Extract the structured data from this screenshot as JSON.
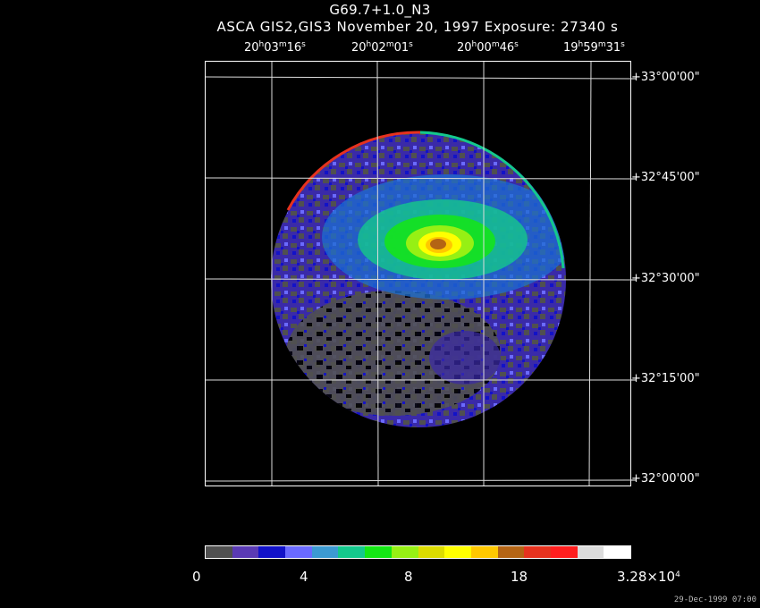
{
  "title": "G69.7+1.0_N3",
  "subtitle": "ASCA GIS2,GIS3 November 20, 1997 Exposure: 27340 s",
  "ra_labels": [
    {
      "h": "20",
      "m": "03",
      "s": "16"
    },
    {
      "h": "20",
      "m": "02",
      "s": "01"
    },
    {
      "h": "20",
      "m": "00",
      "s": "46"
    },
    {
      "h": "19",
      "m": "59",
      "s": "31"
    }
  ],
  "dec_labels": [
    "+33°00'00\"",
    "+32°45'00\"",
    "+32°30'00\"",
    "+32°15'00\"",
    "+32°00'00\""
  ],
  "colorbar": {
    "colors": [
      "#505050",
      "#5a3ab4",
      "#1212c8",
      "#6a6aff",
      "#3c9ad2",
      "#14c88c",
      "#14e614",
      "#96f014",
      "#dcdc00",
      "#ffff00",
      "#ffc800",
      "#b46414",
      "#e6321e",
      "#ff1e1e",
      "#dcdcdc",
      "#ffffff"
    ],
    "tick_labels": [
      "0",
      "4",
      "8",
      "18"
    ],
    "max_label": "3.28×10",
    "max_exponent": "4"
  },
  "timestamp": "29-Dec-1999 07:00"
}
